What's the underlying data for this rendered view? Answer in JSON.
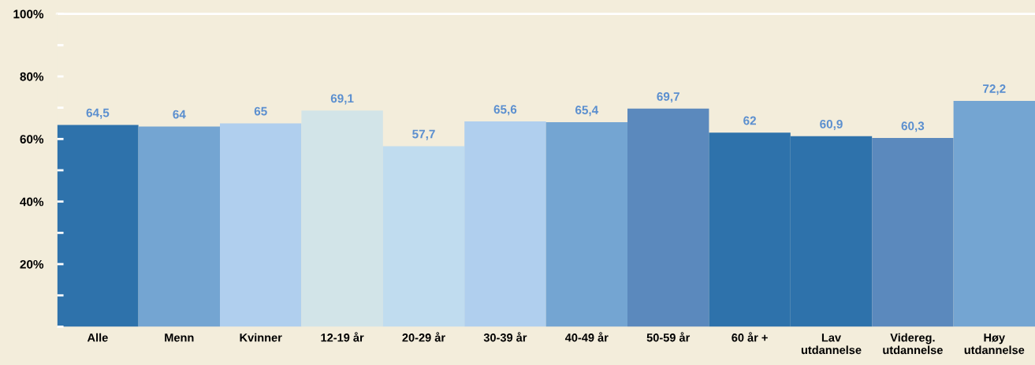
{
  "chart_data": {
    "type": "bar",
    "categories": [
      "Alle",
      "Menn",
      "Kvinner",
      "12-19 år",
      "20-29 år",
      "30-39 år",
      "40-49 år",
      "50-59 år",
      "60 år +",
      "Lav\nutdannelse",
      "Videreg.\nutdannelse",
      "Høy\nutdannelse"
    ],
    "values": [
      64.5,
      64,
      65,
      69.1,
      57.7,
      65.6,
      65.4,
      69.7,
      62,
      60.9,
      60.3,
      72.2
    ],
    "colors": [
      "#2e72ab",
      "#74a5d2",
      "#b0cfee",
      "#d2e4e8",
      "#c0dcef",
      "#b0cfee",
      "#74a5d2",
      "#5b89bd",
      "#2e72ab",
      "#2e72ab",
      "#5b89bd",
      "#74a5d2"
    ],
    "value_labels": [
      "64,5",
      "64",
      "65",
      "69,1",
      "57,7",
      "65,6",
      "65,4",
      "69,7",
      "62",
      "60,9",
      "60,3",
      "72,2"
    ],
    "ylim": [
      0,
      100
    ],
    "yticks": [
      {
        "value": 0,
        "label": null
      },
      {
        "value": 10,
        "label": null
      },
      {
        "value": 20,
        "label": "20%"
      },
      {
        "value": 30,
        "label": null
      },
      {
        "value": 40,
        "label": "40%"
      },
      {
        "value": 50,
        "label": null
      },
      {
        "value": 60,
        "label": "60%"
      },
      {
        "value": 70,
        "label": null
      },
      {
        "value": 80,
        "label": "80%"
      },
      {
        "value": 90,
        "label": null
      },
      {
        "value": 100,
        "label": "100%"
      }
    ],
    "ref_lines": [
      {
        "axis": "y",
        "value": 100,
        "color": "#ffffff"
      }
    ],
    "grid": false,
    "legend": false
  }
}
